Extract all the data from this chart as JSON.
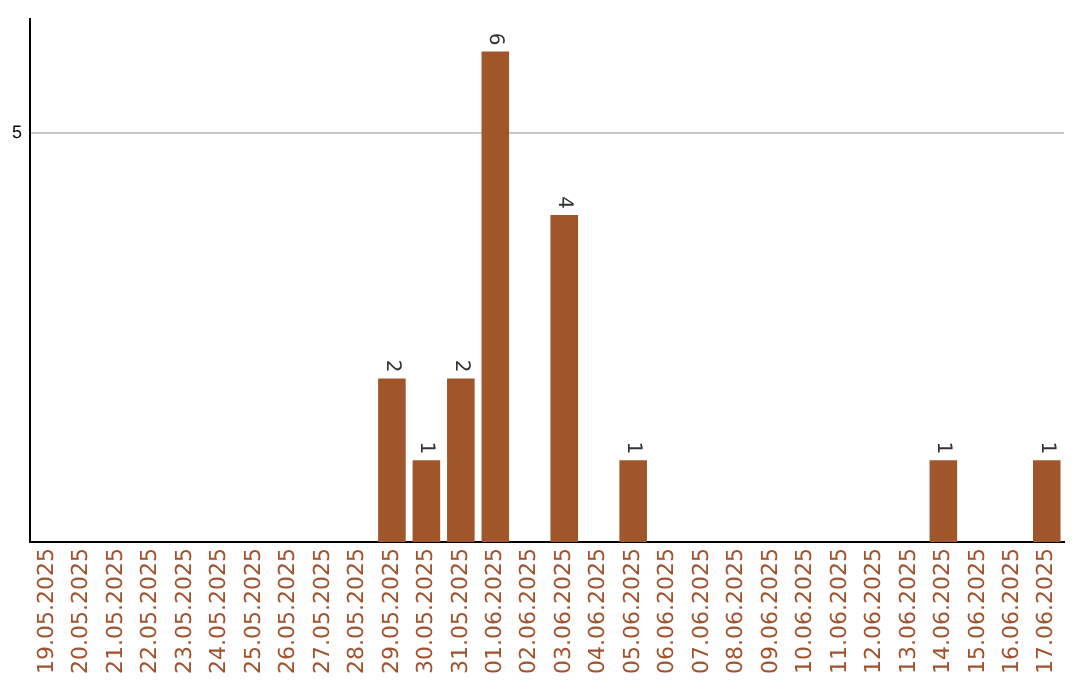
{
  "chart_data": {
    "type": "bar",
    "categories": [
      "19.05.2025",
      "20.05.2025",
      "21.05.2025",
      "22.05.2025",
      "23.05.2025",
      "24.05.2025",
      "25.05.2025",
      "26.05.2025",
      "27.05.2025",
      "28.05.2025",
      "29.05.2025",
      "30.05.2025",
      "31.05.2025",
      "01.06.2025",
      "02.06.2025",
      "03.06.2025",
      "04.06.2025",
      "05.06.2025",
      "06.06.2025",
      "07.06.2025",
      "08.06.2025",
      "09.06.2025",
      "10.06.2025",
      "11.06.2025",
      "12.06.2025",
      "13.06.2025",
      "14.06.2025",
      "15.06.2025",
      "16.06.2025",
      "17.06.2025"
    ],
    "values": [
      0,
      0,
      0,
      0,
      0,
      0,
      0,
      0,
      0,
      0,
      2,
      1,
      2,
      6,
      0,
      4,
      0,
      1,
      0,
      0,
      0,
      0,
      0,
      0,
      0,
      0,
      1,
      0,
      0,
      1
    ],
    "value_labels": [
      null,
      null,
      null,
      null,
      null,
      null,
      null,
      null,
      null,
      null,
      "2",
      "1",
      "2",
      "6",
      null,
      "4",
      null,
      "1",
      null,
      null,
      null,
      null,
      null,
      null,
      null,
      null,
      "1",
      null,
      null,
      "1"
    ],
    "color": "#a0562a",
    "ylim": [
      0,
      6.4
    ],
    "yticks": [
      5
    ],
    "grid": "y",
    "legend": false
  }
}
